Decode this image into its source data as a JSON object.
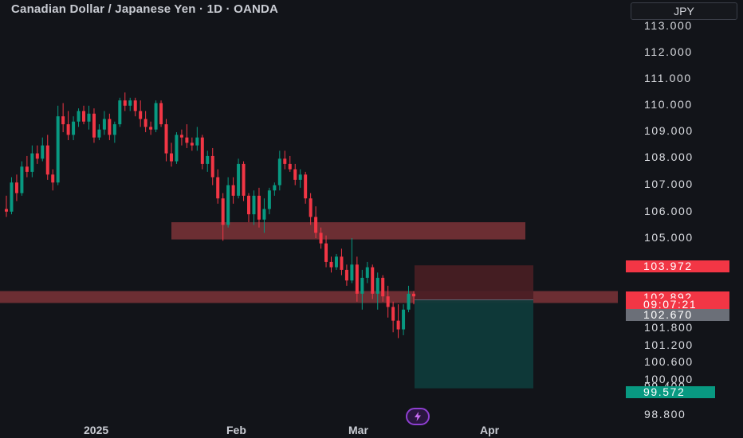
{
  "header": {
    "title": "Canadian Dollar / Japanese Yen · 1D · OANDA",
    "currency": "JPY"
  },
  "axis": {
    "y_ticks": [
      "113.000",
      "112.000",
      "111.000",
      "110.000",
      "109.000",
      "108.000",
      "107.000",
      "106.000",
      "105.000",
      "101.800",
      "101.200",
      "100.600",
      "100.000",
      "99.400",
      "98.800"
    ],
    "x_ticks": [
      "2025",
      "Feb",
      "Mar",
      "Apr"
    ]
  },
  "price_labels": {
    "stop": "103.972",
    "current": "102.892",
    "countdown": "09:07:21",
    "entry": "102.670",
    "target": "99.572"
  },
  "colors": {
    "background": "#121419",
    "up": "#089981",
    "down": "#f23645",
    "zone": "#7d3238",
    "profit": "#0f3a3a",
    "loss": "#4a1e24"
  },
  "icons": {
    "bolt": "lightning-bolt-icon"
  },
  "chart_data": {
    "type": "candlestick",
    "symbol": "CADJPY",
    "timeframe": "1D",
    "ylim": [
      98.8,
      113.0
    ],
    "zones": [
      {
        "low": 104.95,
        "high": 105.6
      },
      {
        "low": 102.55,
        "high": 103.0
      }
    ],
    "position": {
      "entry": 102.67,
      "stop": 103.972,
      "target": 99.572
    },
    "candles": [
      [
        106.1,
        106.6,
        105.8,
        106.0
      ],
      [
        106.0,
        107.3,
        105.9,
        107.1
      ],
      [
        107.1,
        107.4,
        106.4,
        106.7
      ],
      [
        106.7,
        107.9,
        106.6,
        107.7
      ],
      [
        107.7,
        108.1,
        107.3,
        107.5
      ],
      [
        107.5,
        108.5,
        107.3,
        108.2
      ],
      [
        108.2,
        108.5,
        107.8,
        108.0
      ],
      [
        108.0,
        108.8,
        107.9,
        108.5
      ],
      [
        108.5,
        108.9,
        107.2,
        107.4
      ],
      [
        107.4,
        107.6,
        106.8,
        107.1
      ],
      [
        107.1,
        110.0,
        107.0,
        109.6
      ],
      [
        109.6,
        110.1,
        109.0,
        109.3
      ],
      [
        109.3,
        109.8,
        108.7,
        108.9
      ],
      [
        108.9,
        109.6,
        108.7,
        109.4
      ],
      [
        109.4,
        109.9,
        109.2,
        109.8
      ],
      [
        109.8,
        110.0,
        109.3,
        109.4
      ],
      [
        109.4,
        110.0,
        109.1,
        109.7
      ],
      [
        109.7,
        109.9,
        108.6,
        108.8
      ],
      [
        108.8,
        109.3,
        108.7,
        109.1
      ],
      [
        109.1,
        109.8,
        108.9,
        109.5
      ],
      [
        109.5,
        109.7,
        108.7,
        108.9
      ],
      [
        108.9,
        109.4,
        108.6,
        109.3
      ],
      [
        109.3,
        110.3,
        109.2,
        110.2
      ],
      [
        110.2,
        110.5,
        109.8,
        110.0
      ],
      [
        110.0,
        110.3,
        109.8,
        110.2
      ],
      [
        110.2,
        110.3,
        109.6,
        109.8
      ],
      [
        109.8,
        110.2,
        109.2,
        109.5
      ],
      [
        109.5,
        109.8,
        109.0,
        109.2
      ],
      [
        109.2,
        109.4,
        108.9,
        109.1
      ],
      [
        109.1,
        110.2,
        109.0,
        110.1
      ],
      [
        110.1,
        110.2,
        109.2,
        109.3
      ],
      [
        109.3,
        109.5,
        107.9,
        108.2
      ],
      [
        108.2,
        108.6,
        107.7,
        107.9
      ],
      [
        107.9,
        109.0,
        107.8,
        108.9
      ],
      [
        108.9,
        109.1,
        108.5,
        108.8
      ],
      [
        108.8,
        109.3,
        108.4,
        108.6
      ],
      [
        108.6,
        108.8,
        108.3,
        108.5
      ],
      [
        108.5,
        109.2,
        108.3,
        108.8
      ],
      [
        108.8,
        108.9,
        107.6,
        107.8
      ],
      [
        107.8,
        108.3,
        107.5,
        108.1
      ],
      [
        108.1,
        108.4,
        107.0,
        107.3
      ],
      [
        107.3,
        107.6,
        106.3,
        106.5
      ],
      [
        106.5,
        106.7,
        104.9,
        105.5
      ],
      [
        105.5,
        107.3,
        105.4,
        107.0
      ],
      [
        107.0,
        107.3,
        106.3,
        106.6
      ],
      [
        106.6,
        108.0,
        106.5,
        107.8
      ],
      [
        107.8,
        107.9,
        106.4,
        106.6
      ],
      [
        106.6,
        106.7,
        105.6,
        105.9
      ],
      [
        105.9,
        106.8,
        105.5,
        106.6
      ],
      [
        106.6,
        106.9,
        105.4,
        105.7
      ],
      [
        105.7,
        106.5,
        105.2,
        106.1
      ],
      [
        106.1,
        106.9,
        105.9,
        106.8
      ],
      [
        106.8,
        107.1,
        106.6,
        107.0
      ],
      [
        107.0,
        108.3,
        106.8,
        108.0
      ],
      [
        108.0,
        108.3,
        107.6,
        107.8
      ],
      [
        107.8,
        108.1,
        107.5,
        107.6
      ],
      [
        107.6,
        107.8,
        107.0,
        107.2
      ],
      [
        107.2,
        107.6,
        106.9,
        107.4
      ],
      [
        107.4,
        107.5,
        106.3,
        106.5
      ],
      [
        106.5,
        106.7,
        105.5,
        105.8
      ],
      [
        105.8,
        106.2,
        105.0,
        105.2
      ],
      [
        105.2,
        105.4,
        104.6,
        104.8
      ],
      [
        104.8,
        105.1,
        103.9,
        104.1
      ],
      [
        104.1,
        104.3,
        103.7,
        103.9
      ],
      [
        103.9,
        104.4,
        103.8,
        104.3
      ],
      [
        104.3,
        104.6,
        103.6,
        103.8
      ],
      [
        103.8,
        104.0,
        103.2,
        103.4
      ],
      [
        103.4,
        105.0,
        103.3,
        104.0
      ],
      [
        104.0,
        104.3,
        102.6,
        102.9
      ],
      [
        102.9,
        103.8,
        102.3,
        103.5
      ],
      [
        103.5,
        104.1,
        103.3,
        103.9
      ],
      [
        103.9,
        104.0,
        102.7,
        102.9
      ],
      [
        102.9,
        103.7,
        102.3,
        103.5
      ],
      [
        103.5,
        103.6,
        102.6,
        102.8
      ],
      [
        102.8,
        103.2,
        102.0,
        102.4
      ],
      [
        102.4,
        102.6,
        101.5,
        101.9
      ],
      [
        101.9,
        102.5,
        101.3,
        101.6
      ],
      [
        101.6,
        102.5,
        101.4,
        102.3
      ],
      [
        102.3,
        103.2,
        102.2,
        102.9
      ],
      [
        102.9,
        103.0,
        102.5,
        102.8
      ]
    ]
  }
}
